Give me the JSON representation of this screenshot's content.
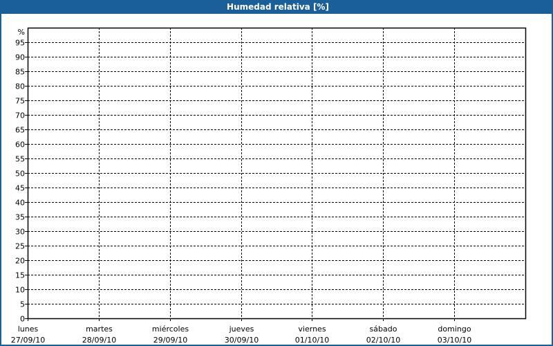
{
  "window": {
    "title": "Humedad relativa [%]",
    "title_bar_color": "#1b5f98"
  },
  "chart_data": {
    "type": "line",
    "title": "Humedad relativa [%]",
    "ylabel": "%",
    "ylim": [
      0,
      100
    ],
    "yticks": [
      0,
      5,
      10,
      15,
      20,
      25,
      30,
      35,
      40,
      45,
      50,
      55,
      60,
      65,
      70,
      75,
      80,
      85,
      90,
      95
    ],
    "grid": true,
    "categories": [
      {
        "day": "lunes",
        "date": "27/09/10"
      },
      {
        "day": "martes",
        "date": "28/09/10"
      },
      {
        "day": "miércoles",
        "date": "29/09/10"
      },
      {
        "day": "jueves",
        "date": "30/09/10"
      },
      {
        "day": "viernes",
        "date": "01/10/10"
      },
      {
        "day": "sábado",
        "date": "02/10/10"
      },
      {
        "day": "domingo",
        "date": "03/10/10"
      }
    ],
    "series": []
  }
}
